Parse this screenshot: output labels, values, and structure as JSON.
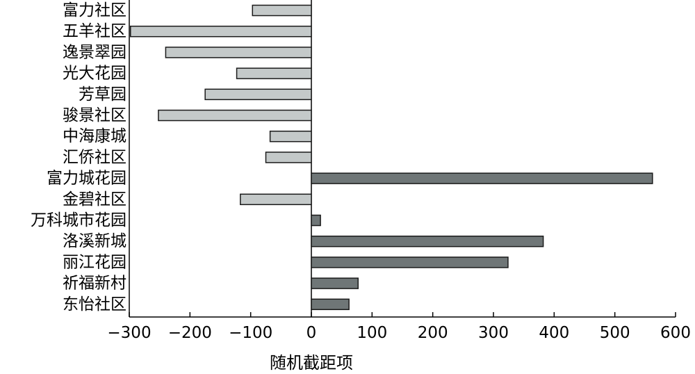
{
  "chart_data": {
    "type": "bar",
    "orientation": "horizontal",
    "categories": [
      "富力社区",
      "五羊社区",
      "逸景翠园",
      "光大花园",
      "芳草园",
      "骏景社区",
      "中海康城",
      "汇侨社区",
      "富力城花园",
      "金碧社区",
      "万科城市花园",
      "洛溪新城",
      "丽江花园",
      "祈福新村",
      "东怡社区"
    ],
    "values": [
      -97,
      -298,
      -240,
      -123,
      -175,
      -252,
      -68,
      -75,
      562,
      -117,
      15,
      382,
      324,
      77,
      62
    ],
    "xlabel": "随机截距项",
    "ylabel": "",
    "xlim": [
      -300,
      600
    ],
    "xticks": [
      "−300",
      "−200",
      "−100",
      "0",
      "100",
      "200",
      "300",
      "400",
      "500",
      "600"
    ],
    "xtick_values": [
      -300,
      -200,
      -100,
      0,
      100,
      200,
      300,
      400,
      500,
      600
    ],
    "grid": false,
    "colors": {
      "negative": "#c4c9c9",
      "positive": "#6f7677",
      "stroke": "#1a1a1a"
    }
  }
}
